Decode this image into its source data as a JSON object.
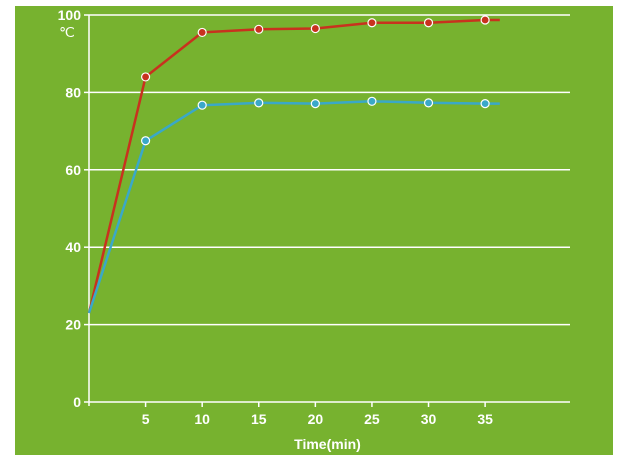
{
  "chart_data": {
    "type": "line",
    "title": "",
    "xlabel": "Time(min)",
    "ylabel": "℃",
    "x": [
      0,
      5,
      10,
      15,
      20,
      25,
      30,
      35,
      36.3
    ],
    "x_ticks": [
      5,
      10,
      15,
      20,
      25,
      30,
      35
    ],
    "y_ticks": [
      0,
      20,
      40,
      60,
      80,
      100
    ],
    "xlim": [
      0,
      42.5
    ],
    "ylim": [
      0,
      100
    ],
    "grid": true,
    "legend": "none",
    "series": [
      {
        "color": "#c8321e",
        "values": [
          23,
          84,
          95.5,
          96.3,
          96.5,
          98,
          98,
          98.7,
          98.7
        ],
        "markers": [
          false,
          true,
          true,
          true,
          true,
          true,
          true,
          true,
          false
        ]
      },
      {
        "color": "#3aa8c8",
        "values": [
          23,
          67.5,
          76.7,
          77.3,
          77.1,
          77.7,
          77.3,
          77.1,
          77.1
        ],
        "markers": [
          false,
          true,
          true,
          true,
          true,
          true,
          true,
          true,
          false
        ]
      }
    ],
    "colors": {
      "background": "#77b22f",
      "axis": "#ffffff",
      "grid": "#ffffff",
      "text": "#ffffff"
    }
  }
}
